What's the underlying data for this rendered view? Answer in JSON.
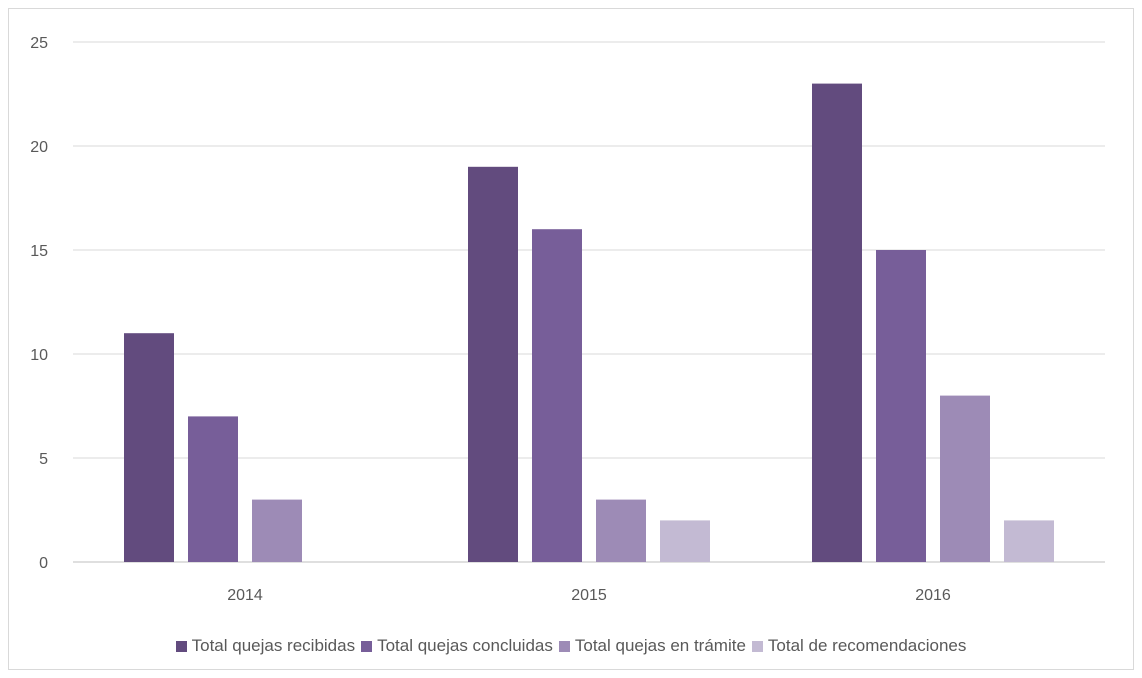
{
  "chart_data": {
    "type": "bar",
    "title": "",
    "xlabel": "",
    "ylabel": "",
    "categories": [
      "2014",
      "2015",
      "2016"
    ],
    "ylim": [
      0,
      25
    ],
    "yticks": [
      0,
      5,
      10,
      15,
      20,
      25
    ],
    "grid": true,
    "legend_position": "bottom",
    "series": [
      {
        "name": "Total quejas recibidas",
        "color": "#624B7E",
        "values": [
          11,
          19,
          23
        ]
      },
      {
        "name": "Total quejas concluidas",
        "color": "#775E99",
        "values": [
          7,
          16,
          15
        ]
      },
      {
        "name": "Total quejas en trámite",
        "color": "#9D8BB6",
        "values": [
          3,
          3,
          8
        ]
      },
      {
        "name": "Total de recomendaciones",
        "color": "#C3BAD3",
        "values": [
          null,
          2,
          2
        ]
      }
    ]
  }
}
